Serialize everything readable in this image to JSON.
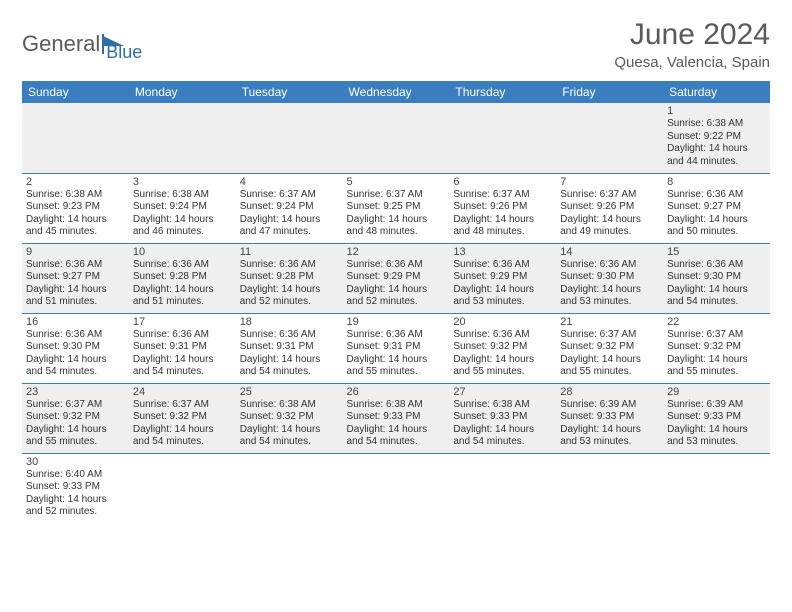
{
  "brand": {
    "part1": "General",
    "part2": "Blue"
  },
  "title": "June 2024",
  "location": "Quesa, Valencia, Spain",
  "colors": {
    "header_bg": "#3a7ebf",
    "header_text": "#ffffff",
    "row_alt_bg": "#efefef",
    "border": "#3a7ebf",
    "text": "#333333",
    "title_color": "#5a5a5a"
  },
  "dayNames": [
    "Sunday",
    "Monday",
    "Tuesday",
    "Wednesday",
    "Thursday",
    "Friday",
    "Saturday"
  ],
  "weeks": [
    [
      null,
      null,
      null,
      null,
      null,
      null,
      {
        "n": "1",
        "sunrise": "6:38 AM",
        "sunset": "9:22 PM",
        "daylight": "14 hours and 44 minutes."
      }
    ],
    [
      {
        "n": "2",
        "sunrise": "6:38 AM",
        "sunset": "9:23 PM",
        "daylight": "14 hours and 45 minutes."
      },
      {
        "n": "3",
        "sunrise": "6:38 AM",
        "sunset": "9:24 PM",
        "daylight": "14 hours and 46 minutes."
      },
      {
        "n": "4",
        "sunrise": "6:37 AM",
        "sunset": "9:24 PM",
        "daylight": "14 hours and 47 minutes."
      },
      {
        "n": "5",
        "sunrise": "6:37 AM",
        "sunset": "9:25 PM",
        "daylight": "14 hours and 48 minutes."
      },
      {
        "n": "6",
        "sunrise": "6:37 AM",
        "sunset": "9:26 PM",
        "daylight": "14 hours and 48 minutes."
      },
      {
        "n": "7",
        "sunrise": "6:37 AM",
        "sunset": "9:26 PM",
        "daylight": "14 hours and 49 minutes."
      },
      {
        "n": "8",
        "sunrise": "6:36 AM",
        "sunset": "9:27 PM",
        "daylight": "14 hours and 50 minutes."
      }
    ],
    [
      {
        "n": "9",
        "sunrise": "6:36 AM",
        "sunset": "9:27 PM",
        "daylight": "14 hours and 51 minutes."
      },
      {
        "n": "10",
        "sunrise": "6:36 AM",
        "sunset": "9:28 PM",
        "daylight": "14 hours and 51 minutes."
      },
      {
        "n": "11",
        "sunrise": "6:36 AM",
        "sunset": "9:28 PM",
        "daylight": "14 hours and 52 minutes."
      },
      {
        "n": "12",
        "sunrise": "6:36 AM",
        "sunset": "9:29 PM",
        "daylight": "14 hours and 52 minutes."
      },
      {
        "n": "13",
        "sunrise": "6:36 AM",
        "sunset": "9:29 PM",
        "daylight": "14 hours and 53 minutes."
      },
      {
        "n": "14",
        "sunrise": "6:36 AM",
        "sunset": "9:30 PM",
        "daylight": "14 hours and 53 minutes."
      },
      {
        "n": "15",
        "sunrise": "6:36 AM",
        "sunset": "9:30 PM",
        "daylight": "14 hours and 54 minutes."
      }
    ],
    [
      {
        "n": "16",
        "sunrise": "6:36 AM",
        "sunset": "9:30 PM",
        "daylight": "14 hours and 54 minutes."
      },
      {
        "n": "17",
        "sunrise": "6:36 AM",
        "sunset": "9:31 PM",
        "daylight": "14 hours and 54 minutes."
      },
      {
        "n": "18",
        "sunrise": "6:36 AM",
        "sunset": "9:31 PM",
        "daylight": "14 hours and 54 minutes."
      },
      {
        "n": "19",
        "sunrise": "6:36 AM",
        "sunset": "9:31 PM",
        "daylight": "14 hours and 55 minutes."
      },
      {
        "n": "20",
        "sunrise": "6:36 AM",
        "sunset": "9:32 PM",
        "daylight": "14 hours and 55 minutes."
      },
      {
        "n": "21",
        "sunrise": "6:37 AM",
        "sunset": "9:32 PM",
        "daylight": "14 hours and 55 minutes."
      },
      {
        "n": "22",
        "sunrise": "6:37 AM",
        "sunset": "9:32 PM",
        "daylight": "14 hours and 55 minutes."
      }
    ],
    [
      {
        "n": "23",
        "sunrise": "6:37 AM",
        "sunset": "9:32 PM",
        "daylight": "14 hours and 55 minutes."
      },
      {
        "n": "24",
        "sunrise": "6:37 AM",
        "sunset": "9:32 PM",
        "daylight": "14 hours and 54 minutes."
      },
      {
        "n": "25",
        "sunrise": "6:38 AM",
        "sunset": "9:32 PM",
        "daylight": "14 hours and 54 minutes."
      },
      {
        "n": "26",
        "sunrise": "6:38 AM",
        "sunset": "9:33 PM",
        "daylight": "14 hours and 54 minutes."
      },
      {
        "n": "27",
        "sunrise": "6:38 AM",
        "sunset": "9:33 PM",
        "daylight": "14 hours and 54 minutes."
      },
      {
        "n": "28",
        "sunrise": "6:39 AM",
        "sunset": "9:33 PM",
        "daylight": "14 hours and 53 minutes."
      },
      {
        "n": "29",
        "sunrise": "6:39 AM",
        "sunset": "9:33 PM",
        "daylight": "14 hours and 53 minutes."
      }
    ],
    [
      {
        "n": "30",
        "sunrise": "6:40 AM",
        "sunset": "9:33 PM",
        "daylight": "14 hours and 52 minutes."
      },
      null,
      null,
      null,
      null,
      null,
      null
    ]
  ],
  "labels": {
    "sunrise": "Sunrise:",
    "sunset": "Sunset:",
    "daylight": "Daylight:"
  }
}
